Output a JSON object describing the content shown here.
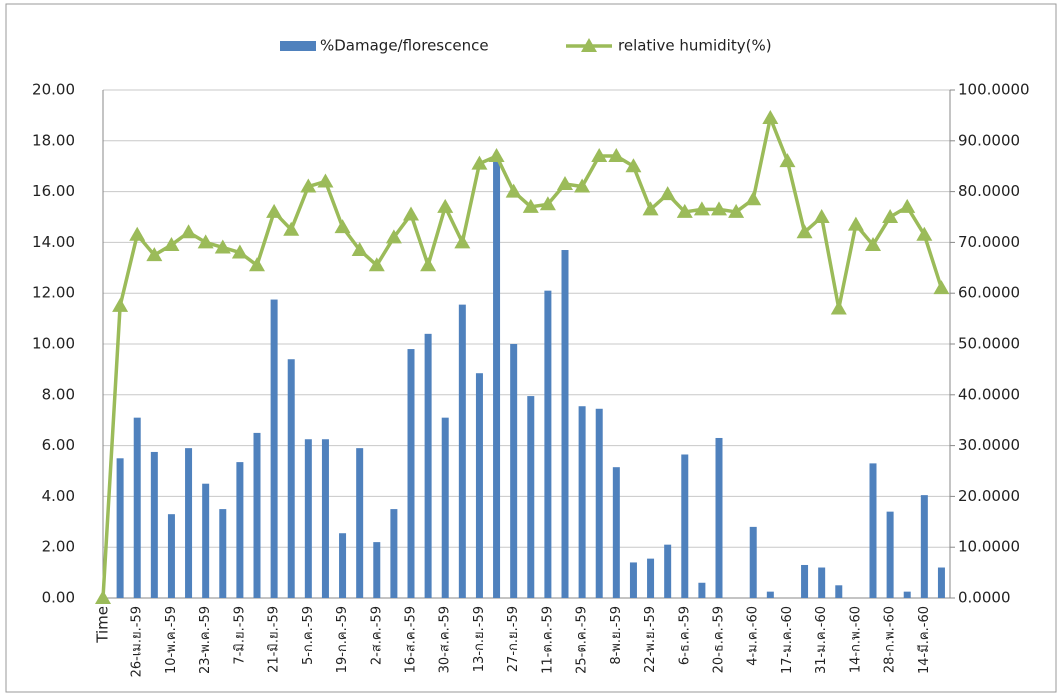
{
  "chart_data": {
    "type": "bar-line",
    "categories": [
      "Time",
      null,
      "26-เม.ย.-59",
      null,
      "10-พ.ค.-59",
      null,
      "23-พ.ค.-59",
      null,
      "7-มิ.ย.-59",
      null,
      "21-มิ.ย.-59",
      null,
      "5-ก.ค.-59",
      null,
      "19-ก.ค.-59",
      null,
      "2-ส.ค.-59",
      null,
      "16-ส.ค.-59",
      null,
      "30-ส.ค.-59",
      null,
      "13-ก.ย.-59",
      null,
      "27-ก.ย.-59",
      null,
      "11-ต.ค.-59",
      null,
      "25-ต.ค.-59",
      null,
      "8-พ.ย.-59",
      null,
      "22-พ.ย.-59",
      null,
      "6-ธ.ค.-59",
      null,
      "20-ธ.ค.-59",
      null,
      "4-ม.ค.-60",
      null,
      "17-ม.ค.-60",
      null,
      "31-ม.ค.-60",
      null,
      "14-ก.พ.-60",
      null,
      "28-ก.พ.-60",
      null,
      "14-มี.ค.-60",
      null
    ],
    "series": [
      {
        "name": "%Damage/florescence",
        "type": "bar",
        "color": "#4f81bd",
        "values": [
          null,
          5.5,
          7.1,
          5.75,
          3.3,
          5.9,
          4.5,
          3.5,
          5.35,
          6.5,
          11.75,
          9.4,
          6.25,
          6.25,
          2.55,
          5.9,
          2.2,
          3.5,
          9.8,
          10.4,
          7.1,
          11.55,
          8.85,
          17.2,
          10.0,
          7.95,
          12.1,
          13.7,
          7.55,
          7.45,
          5.15,
          1.4,
          1.55,
          2.1,
          5.65,
          0.6,
          6.3,
          0,
          2.8,
          0.25,
          0,
          1.3,
          1.2,
          0.5,
          0,
          5.3,
          3.4,
          0.25,
          4.05,
          1.2
        ]
      },
      {
        "name": "relative humidity(%)",
        "type": "line",
        "axis": "y2",
        "color": "#9bbb59",
        "values": [
          0,
          57.5,
          71.5,
          67.5,
          69.5,
          72,
          70,
          69,
          68,
          65.5,
          76,
          72.5,
          81,
          82,
          73,
          68.5,
          65.5,
          71,
          75.5,
          65.5,
          77,
          70,
          85.5,
          87,
          80,
          77,
          77.5,
          81.5,
          81,
          87,
          87,
          85,
          76.5,
          79.5,
          76,
          76.5,
          76.5,
          76,
          78.5,
          94.5,
          86,
          72,
          75,
          57,
          73.5,
          69.5,
          75,
          77,
          71.5,
          61
        ]
      }
    ],
    "ylim": [
      0,
      20
    ],
    "yticks": [
      {
        "value": 0,
        "label": "0.00"
      },
      {
        "value": 2,
        "label": "2.00"
      },
      {
        "value": 4,
        "label": "4.00"
      },
      {
        "value": 6,
        "label": "6.00"
      },
      {
        "value": 8,
        "label": "8.00"
      },
      {
        "value": 10,
        "label": "10.00"
      },
      {
        "value": 12,
        "label": "12.00"
      },
      {
        "value": 14,
        "label": "14.00"
      },
      {
        "value": 16,
        "label": "16.00"
      },
      {
        "value": 18,
        "label": "18.00"
      },
      {
        "value": 20,
        "label": "20.00"
      }
    ],
    "y2lim": [
      0,
      100
    ],
    "y2ticks": [
      {
        "value": 0,
        "label": "0.0000"
      },
      {
        "value": 10,
        "label": "10.0000"
      },
      {
        "value": 20,
        "label": "20.0000"
      },
      {
        "value": 30,
        "label": "30.0000"
      },
      {
        "value": 40,
        "label": "40.0000"
      },
      {
        "value": 50,
        "label": "50.0000"
      },
      {
        "value": 60,
        "label": "60.0000"
      },
      {
        "value": 70,
        "label": "70.0000"
      },
      {
        "value": 80,
        "label": "80.0000"
      },
      {
        "value": 90,
        "label": "90.0000"
      },
      {
        "value": 100,
        "label": "100.0000"
      }
    ],
    "grid": true,
    "legend": "top"
  }
}
